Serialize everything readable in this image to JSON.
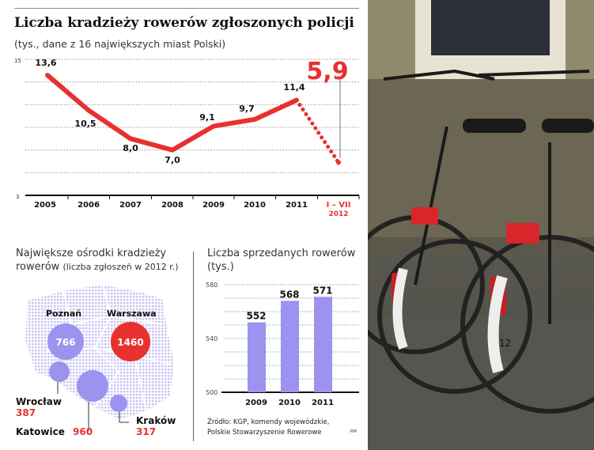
{
  "chart_data": [
    {
      "type": "line",
      "title": "Liczba kradzieży rowerów zgłoszonych policji",
      "subtitle": "(tys., dane z 16 największych miast Polski)",
      "categories": [
        "2005",
        "2006",
        "2007",
        "2008",
        "2009",
        "2010",
        "2011",
        "I – VII 2012"
      ],
      "category_labels": [
        [
          "2005"
        ],
        [
          "2006"
        ],
        [
          "2007"
        ],
        [
          "2008"
        ],
        [
          "2009"
        ],
        [
          "2010"
        ],
        [
          "2011"
        ],
        [
          "I – VII",
          "2012"
        ]
      ],
      "values": [
        13.6,
        10.5,
        8.0,
        7.0,
        9.1,
        9.7,
        11.4,
        5.9
      ],
      "value_labels": [
        "13,6",
        "10,5",
        "8,0",
        "7,0",
        "9,1",
        "9,7",
        "11,4",
        "5,9"
      ],
      "ylim": [
        3,
        15
      ],
      "ytick_labels": [
        "15",
        "3"
      ],
      "grid": true,
      "line_color": "#e8312f",
      "last_segment_style": "dotted"
    },
    {
      "type": "bubble-map",
      "title": "Największe ośrodki kradzieży",
      "title_line2": "rowerów",
      "title_note": "(liczba zgłoszeń w 2012 r.)",
      "points": [
        {
          "city": "Warszawa",
          "value": 1460,
          "label": "1460",
          "color": "#e8312f"
        },
        {
          "city": "Katowice",
          "value": 960,
          "label": "960",
          "color": "#9b93ee"
        },
        {
          "city": "Poznań",
          "value": 766,
          "label": "766",
          "color": "#9b93ee"
        },
        {
          "city": "Wrocław",
          "value": 387,
          "label": "387",
          "color": "#9b93ee"
        },
        {
          "city": "Kraków",
          "value": 317,
          "label": "317",
          "color": "#9b93ee"
        }
      ]
    },
    {
      "type": "bar",
      "title": "Liczba sprzedanych rowerów",
      "title_line2": "(tys.)",
      "categories": [
        "2009",
        "2010",
        "2011"
      ],
      "values": [
        552,
        568,
        571
      ],
      "ylim": [
        500,
        580
      ],
      "ytick_labels": [
        "580",
        "540",
        "500"
      ],
      "grid": true,
      "bar_color": "#9b93ee"
    }
  ],
  "source": "Źródło: KGP, komendy wojewódzkie,",
  "source_line2": "Polskie Stowarzyszenie Rowerowe",
  "credit": "RM",
  "photo": {
    "tag": "12"
  }
}
